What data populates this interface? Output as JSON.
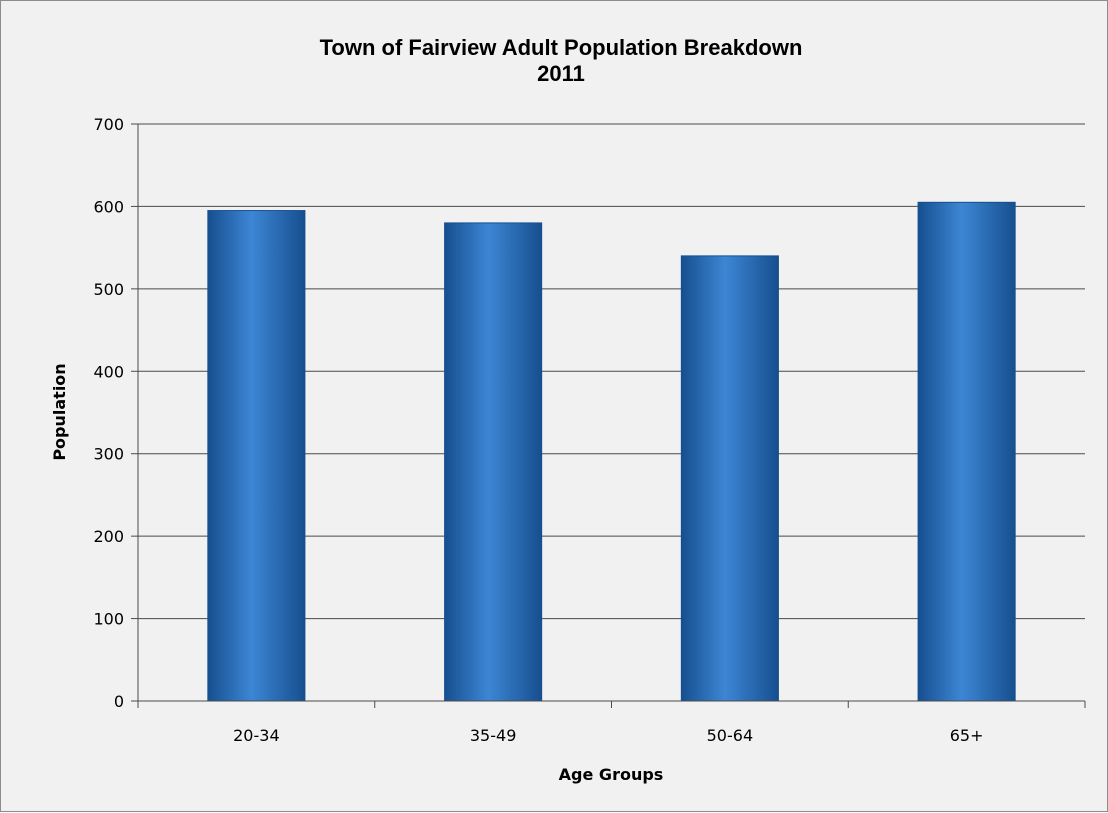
{
  "chart_data": {
    "type": "bar",
    "title": "Town of Fairview Adult Population Breakdown",
    "subtitle": "2011",
    "xlabel": "Age Groups",
    "ylabel": "Population",
    "categories": [
      "20-34",
      "35-49",
      "50-64",
      "65+"
    ],
    "values": [
      595,
      580,
      540,
      605
    ],
    "ylim": [
      0,
      700
    ],
    "yticks": [
      0,
      100,
      200,
      300,
      400,
      500,
      600,
      700
    ],
    "grid": true,
    "legend": "none",
    "colors": {
      "bar": "#1f66b3",
      "bar_light": "#3d86d4",
      "bar_dark": "#164f8f",
      "grid": "#4a4a4a",
      "background": "#f1f1f1"
    }
  }
}
